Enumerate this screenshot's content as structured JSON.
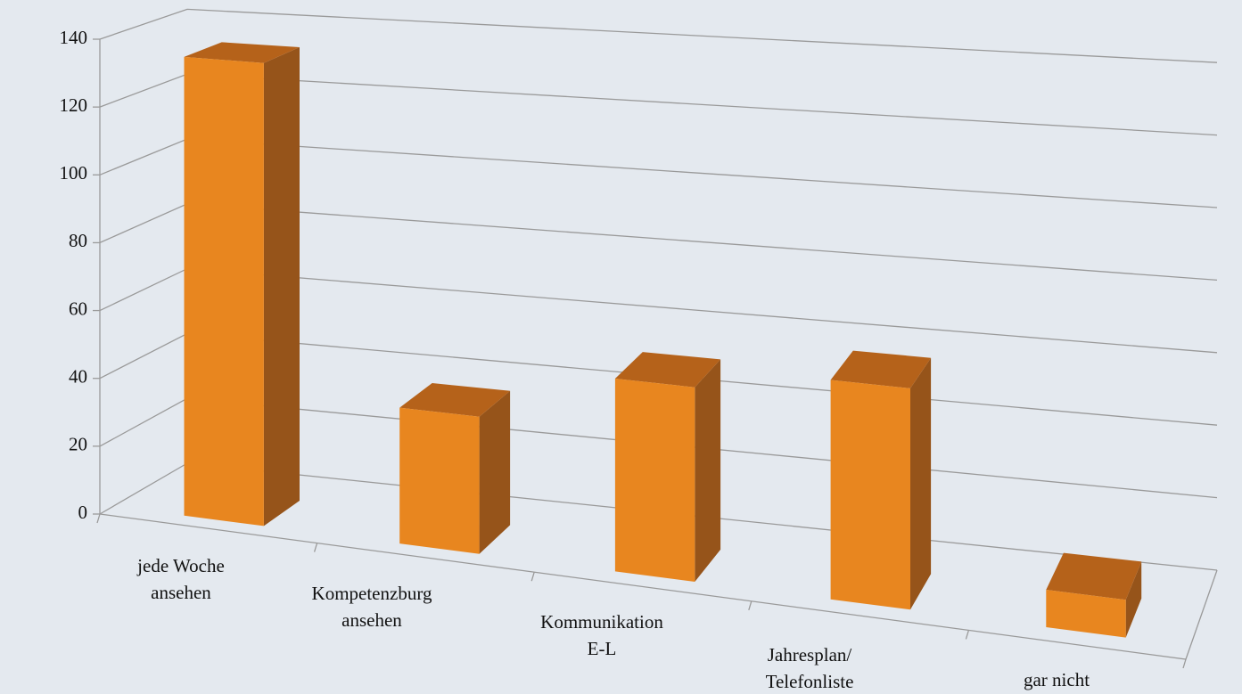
{
  "chart_data": {
    "type": "bar3d",
    "categories": [
      [
        "jede Woche",
        "ansehen"
      ],
      [
        "Kompetenzburg",
        "ansehen"
      ],
      [
        "Kommunikation",
        "E-L"
      ],
      [
        "Jahresplan/",
        "Telefonliste"
      ],
      [
        "gar nicht"
      ]
    ],
    "values": [
      135,
      39,
      54,
      60,
      10
    ],
    "color": "#e8861f",
    "ylim": [
      0,
      140
    ],
    "yticks": [
      0,
      20,
      40,
      60,
      80,
      100,
      120,
      140
    ],
    "grid": true
  }
}
